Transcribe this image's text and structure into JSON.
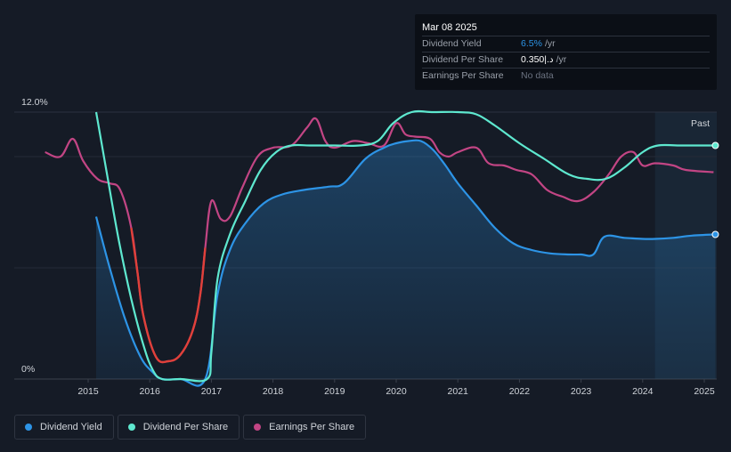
{
  "tooltip": {
    "date": "Mar 08 2025",
    "rows": [
      {
        "label": "Dividend Yield",
        "value": "6.5%",
        "unit": "/yr"
      },
      {
        "label": "Dividend Per Share",
        "value": "0.350|.د",
        "unit": "/yr"
      },
      {
        "label": "Earnings Per Share",
        "value": "No data"
      }
    ]
  },
  "past_label": "Past",
  "legend": [
    {
      "label": "Dividend Yield",
      "color": "#2d94e6"
    },
    {
      "label": "Dividend Per Share",
      "color": "#5ee8cf"
    },
    {
      "label": "Earnings Per Share",
      "color": "#c24584"
    }
  ],
  "chart_data": {
    "type": "line",
    "ylim": [
      0,
      12
    ],
    "xlim": [
      2014.3,
      2025.2
    ],
    "y_ticks": [
      "0%",
      "12.0%"
    ],
    "x_ticks": [
      "2015",
      "2016",
      "2017",
      "2018",
      "2019",
      "2020",
      "2021",
      "2022",
      "2023",
      "2024",
      "2025"
    ],
    "grid": true,
    "forecast_region_start": 2024.2,
    "series": [
      {
        "name": "Dividend Yield",
        "color": "#2d94e6",
        "x": [
          2015.13,
          2015.35,
          2015.6,
          2015.85,
          2016.05,
          2016.2,
          2016.5,
          2016.9,
          2017.1,
          2017.3,
          2017.55,
          2017.85,
          2018.15,
          2018.5,
          2018.9,
          2019.15,
          2019.5,
          2019.8,
          2020.0,
          2020.2,
          2020.4,
          2020.6,
          2020.8,
          2021.0,
          2021.3,
          2021.6,
          2021.9,
          2022.2,
          2022.5,
          2022.8,
          2023.0,
          2023.2,
          2023.38,
          2023.7,
          2024.0,
          2024.2,
          2024.5,
          2024.8,
          2025.18
        ],
        "values": [
          7.3,
          5.0,
          2.7,
          1.0,
          0.3,
          0.0,
          0.0,
          0.0,
          3.8,
          5.8,
          7.0,
          7.9,
          8.3,
          8.5,
          8.65,
          8.8,
          9.9,
          10.4,
          10.6,
          10.7,
          10.7,
          10.3,
          9.6,
          8.8,
          7.8,
          6.8,
          6.1,
          5.8,
          5.65,
          5.6,
          5.6,
          5.6,
          6.4,
          6.35,
          6.3,
          6.3,
          6.35,
          6.45,
          6.5
        ]
      },
      {
        "name": "Dividend Per Share",
        "color": "#5ee8cf",
        "x": [
          2015.13,
          2015.3,
          2015.5,
          2015.7,
          2015.9,
          2016.05,
          2016.2,
          2016.5,
          2016.93,
          2017.0,
          2017.1,
          2017.3,
          2017.55,
          2017.8,
          2018.05,
          2018.3,
          2018.6,
          2019.0,
          2019.4,
          2019.7,
          2019.95,
          2020.25,
          2020.6,
          2021.0,
          2021.3,
          2021.6,
          2022.0,
          2022.4,
          2022.8,
          2023.1,
          2023.4,
          2023.7,
          2024.0,
          2024.25,
          2024.6,
          2025.18
        ],
        "values": [
          12.0,
          9.3,
          6.2,
          3.6,
          1.5,
          0.4,
          0.0,
          0.0,
          0.0,
          1.2,
          4.5,
          6.5,
          8.0,
          9.4,
          10.2,
          10.5,
          10.5,
          10.5,
          10.5,
          10.7,
          11.5,
          12.0,
          12.0,
          12.0,
          11.9,
          11.4,
          10.6,
          9.9,
          9.2,
          9.0,
          9.0,
          9.5,
          10.2,
          10.5,
          10.5,
          10.5
        ]
      },
      {
        "name": "Earnings Per Share",
        "color": "#c24584",
        "x": [
          2014.3,
          2014.55,
          2014.75,
          2014.92,
          2015.15,
          2015.35,
          2015.52,
          2015.7,
          2015.8,
          2015.9,
          2016.1,
          2016.3,
          2016.5,
          2016.7,
          2016.82,
          2016.9,
          2017.0,
          2017.15,
          2017.3,
          2017.5,
          2017.75,
          2018.0,
          2018.3,
          2018.55,
          2018.7,
          2018.85,
          2019.0,
          2019.3,
          2019.55,
          2019.8,
          2020.0,
          2020.15,
          2020.3,
          2020.55,
          2020.7,
          2020.85,
          2021.0,
          2021.3,
          2021.5,
          2021.75,
          2021.95,
          2022.2,
          2022.45,
          2022.7,
          2022.95,
          2023.2,
          2023.45,
          2023.65,
          2023.85,
          2024.0,
          2024.2,
          2024.5,
          2024.7,
          2025.15
        ],
        "values": [
          10.2,
          10.0,
          10.8,
          9.8,
          9.0,
          8.8,
          8.5,
          6.8,
          4.8,
          2.8,
          1.0,
          0.8,
          1.1,
          2.2,
          3.8,
          5.9,
          8.0,
          7.2,
          7.3,
          8.6,
          10.0,
          10.4,
          10.5,
          11.3,
          11.7,
          10.7,
          10.4,
          10.7,
          10.6,
          10.5,
          11.5,
          11.0,
          10.9,
          10.8,
          10.2,
          10.0,
          10.2,
          10.4,
          9.7,
          9.6,
          9.4,
          9.2,
          8.5,
          8.2,
          8.0,
          8.4,
          9.2,
          10.0,
          10.2,
          9.6,
          9.7,
          9.6,
          9.4,
          9.3
        ]
      }
    ]
  }
}
